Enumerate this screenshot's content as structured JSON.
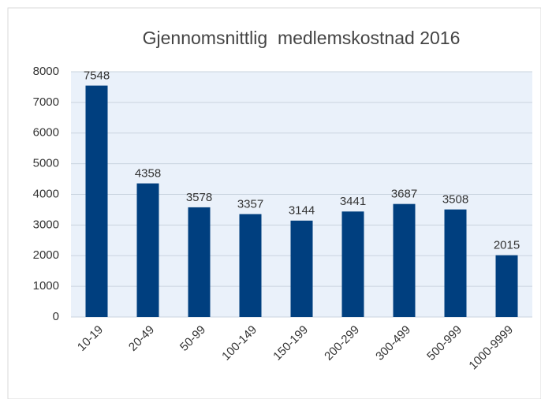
{
  "chart_data": {
    "type": "bar",
    "title": "Gjennomsnittlig  medlemskostnad 2016",
    "categories": [
      "10-19",
      "20-49",
      "50-99",
      "100-149",
      "150-199",
      "200-299",
      "300-499",
      "500-999",
      "1000-9999"
    ],
    "values": [
      7548,
      4358,
      3578,
      3357,
      3144,
      3441,
      3687,
      3508,
      2015
    ],
    "color": "#003f7f",
    "ylim": [
      0,
      8000
    ],
    "yticks": [
      0,
      1000,
      2000,
      3000,
      4000,
      5000,
      6000,
      7000,
      8000
    ],
    "grid": true
  }
}
